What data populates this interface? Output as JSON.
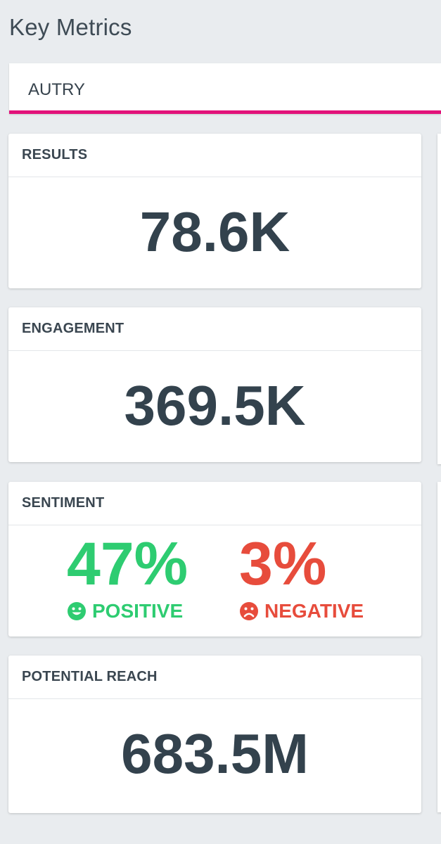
{
  "page": {
    "title": "Key Metrics"
  },
  "selector": {
    "value": "AUTRY",
    "accent_color": "#e2127a"
  },
  "cards": {
    "results": {
      "title": "RESULTS",
      "value": "78.6K"
    },
    "engagement": {
      "title": "ENGAGEMENT",
      "value": "369.5K"
    },
    "sentiment": {
      "title": "SENTIMENT",
      "positive": {
        "percent": "47%",
        "label": "POSITIVE",
        "color": "#2ecc71",
        "icon": "smiley-face-icon"
      },
      "negative": {
        "percent": "3%",
        "label": "NEGATIVE",
        "color": "#e74c3c",
        "icon": "sad-face-icon"
      }
    },
    "potential_reach": {
      "title": "POTENTIAL REACH",
      "value": "683.5M"
    }
  }
}
